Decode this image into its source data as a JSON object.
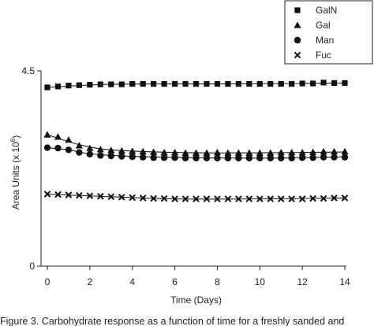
{
  "chart_data": {
    "type": "scatter",
    "xlabel": "Time (Days)",
    "ylabel_prefix": "Area Units (x 10",
    "ylabel_exp": "6",
    "ylabel_suffix": ")",
    "xlim": [
      0,
      14
    ],
    "ylim": [
      0,
      4.5
    ],
    "xticks": [
      "0",
      "2",
      "4",
      "6",
      "8",
      "10",
      "12",
      "14"
    ],
    "yticks": [
      "0",
      "4.5"
    ],
    "grid": false,
    "legend_position": "top-right",
    "series": [
      {
        "name": "GalN",
        "marker": "square",
        "x": [
          0,
          0.5,
          1,
          1.5,
          2,
          2.5,
          3,
          3.5,
          4,
          4.5,
          5,
          5.5,
          6,
          6.5,
          7,
          7.5,
          8,
          8.5,
          9,
          9.5,
          10,
          10.5,
          11,
          11.5,
          12,
          12.5,
          13,
          13.5,
          14
        ],
        "y": [
          4.12,
          4.14,
          4.16,
          4.17,
          4.18,
          4.19,
          4.19,
          4.19,
          4.2,
          4.2,
          4.2,
          4.2,
          4.2,
          4.2,
          4.2,
          4.2,
          4.2,
          4.2,
          4.2,
          4.2,
          4.2,
          4.2,
          4.2,
          4.2,
          4.21,
          4.21,
          4.23,
          4.22,
          4.22
        ],
        "fit": [
          [
            0,
            4.12
          ],
          [
            3,
            4.19
          ],
          [
            8,
            4.2
          ],
          [
            12,
            4.21
          ],
          [
            14,
            4.22
          ]
        ]
      },
      {
        "name": "Gal",
        "marker": "triangle",
        "x": [
          0,
          0.5,
          1,
          1.5,
          2,
          2.5,
          3,
          3.5,
          4,
          4.5,
          5,
          5.5,
          6,
          6.5,
          7,
          7.5,
          8,
          8.5,
          9,
          9.5,
          10,
          10.5,
          11,
          11.5,
          12,
          12.5,
          13,
          13.5,
          14
        ],
        "y": [
          3.03,
          2.98,
          2.91,
          2.78,
          2.72,
          2.69,
          2.67,
          2.66,
          2.65,
          2.64,
          2.63,
          2.62,
          2.62,
          2.61,
          2.61,
          2.61,
          2.62,
          2.61,
          2.61,
          2.61,
          2.61,
          2.61,
          2.62,
          2.62,
          2.62,
          2.63,
          2.64,
          2.64,
          2.64
        ],
        "fit": [
          [
            0,
            3.03
          ],
          [
            1.5,
            2.8
          ],
          [
            3,
            2.68
          ],
          [
            6,
            2.62
          ],
          [
            9,
            2.61
          ],
          [
            12,
            2.62
          ],
          [
            14,
            2.63
          ]
        ]
      },
      {
        "name": "Man",
        "marker": "circle",
        "x": [
          0,
          0.5,
          1,
          1.5,
          2,
          2.5,
          3,
          3.5,
          4,
          4.5,
          5,
          5.5,
          6,
          6.5,
          7,
          7.5,
          8,
          8.5,
          9,
          9.5,
          10,
          10.5,
          11,
          11.5,
          12,
          12.5,
          13,
          13.5,
          14
        ],
        "y": [
          2.73,
          2.72,
          2.68,
          2.62,
          2.58,
          2.55,
          2.54,
          2.53,
          2.52,
          2.51,
          2.5,
          2.5,
          2.5,
          2.49,
          2.49,
          2.49,
          2.49,
          2.49,
          2.49,
          2.49,
          2.49,
          2.49,
          2.49,
          2.49,
          2.5,
          2.5,
          2.51,
          2.51,
          2.51
        ],
        "fit": [
          [
            0,
            2.73
          ],
          [
            1,
            2.68
          ],
          [
            2,
            2.59
          ],
          [
            4,
            2.53
          ],
          [
            7,
            2.5
          ],
          [
            10,
            2.49
          ],
          [
            12,
            2.5
          ],
          [
            14,
            2.52
          ]
        ]
      },
      {
        "name": "Fuc",
        "marker": "x",
        "x": [
          0,
          0.5,
          1,
          1.5,
          2,
          2.5,
          3,
          3.5,
          4,
          4.5,
          5,
          5.5,
          6,
          6.5,
          7,
          7.5,
          8,
          8.5,
          9,
          9.5,
          10,
          10.5,
          11,
          11.5,
          12,
          12.5,
          13,
          13.5,
          14
        ],
        "y": [
          1.66,
          1.65,
          1.64,
          1.63,
          1.62,
          1.61,
          1.6,
          1.59,
          1.58,
          1.57,
          1.56,
          1.56,
          1.55,
          1.55,
          1.55,
          1.55,
          1.55,
          1.55,
          1.55,
          1.55,
          1.55,
          1.55,
          1.55,
          1.55,
          1.55,
          1.56,
          1.56,
          1.57,
          1.57
        ],
        "fit": [
          [
            0,
            1.66
          ],
          [
            3,
            1.6
          ],
          [
            6,
            1.55
          ],
          [
            10,
            1.55
          ],
          [
            14,
            1.57
          ]
        ]
      }
    ]
  },
  "caption": "Figure 3. Carbohydrate response as a function of time for a freshly sanded and"
}
